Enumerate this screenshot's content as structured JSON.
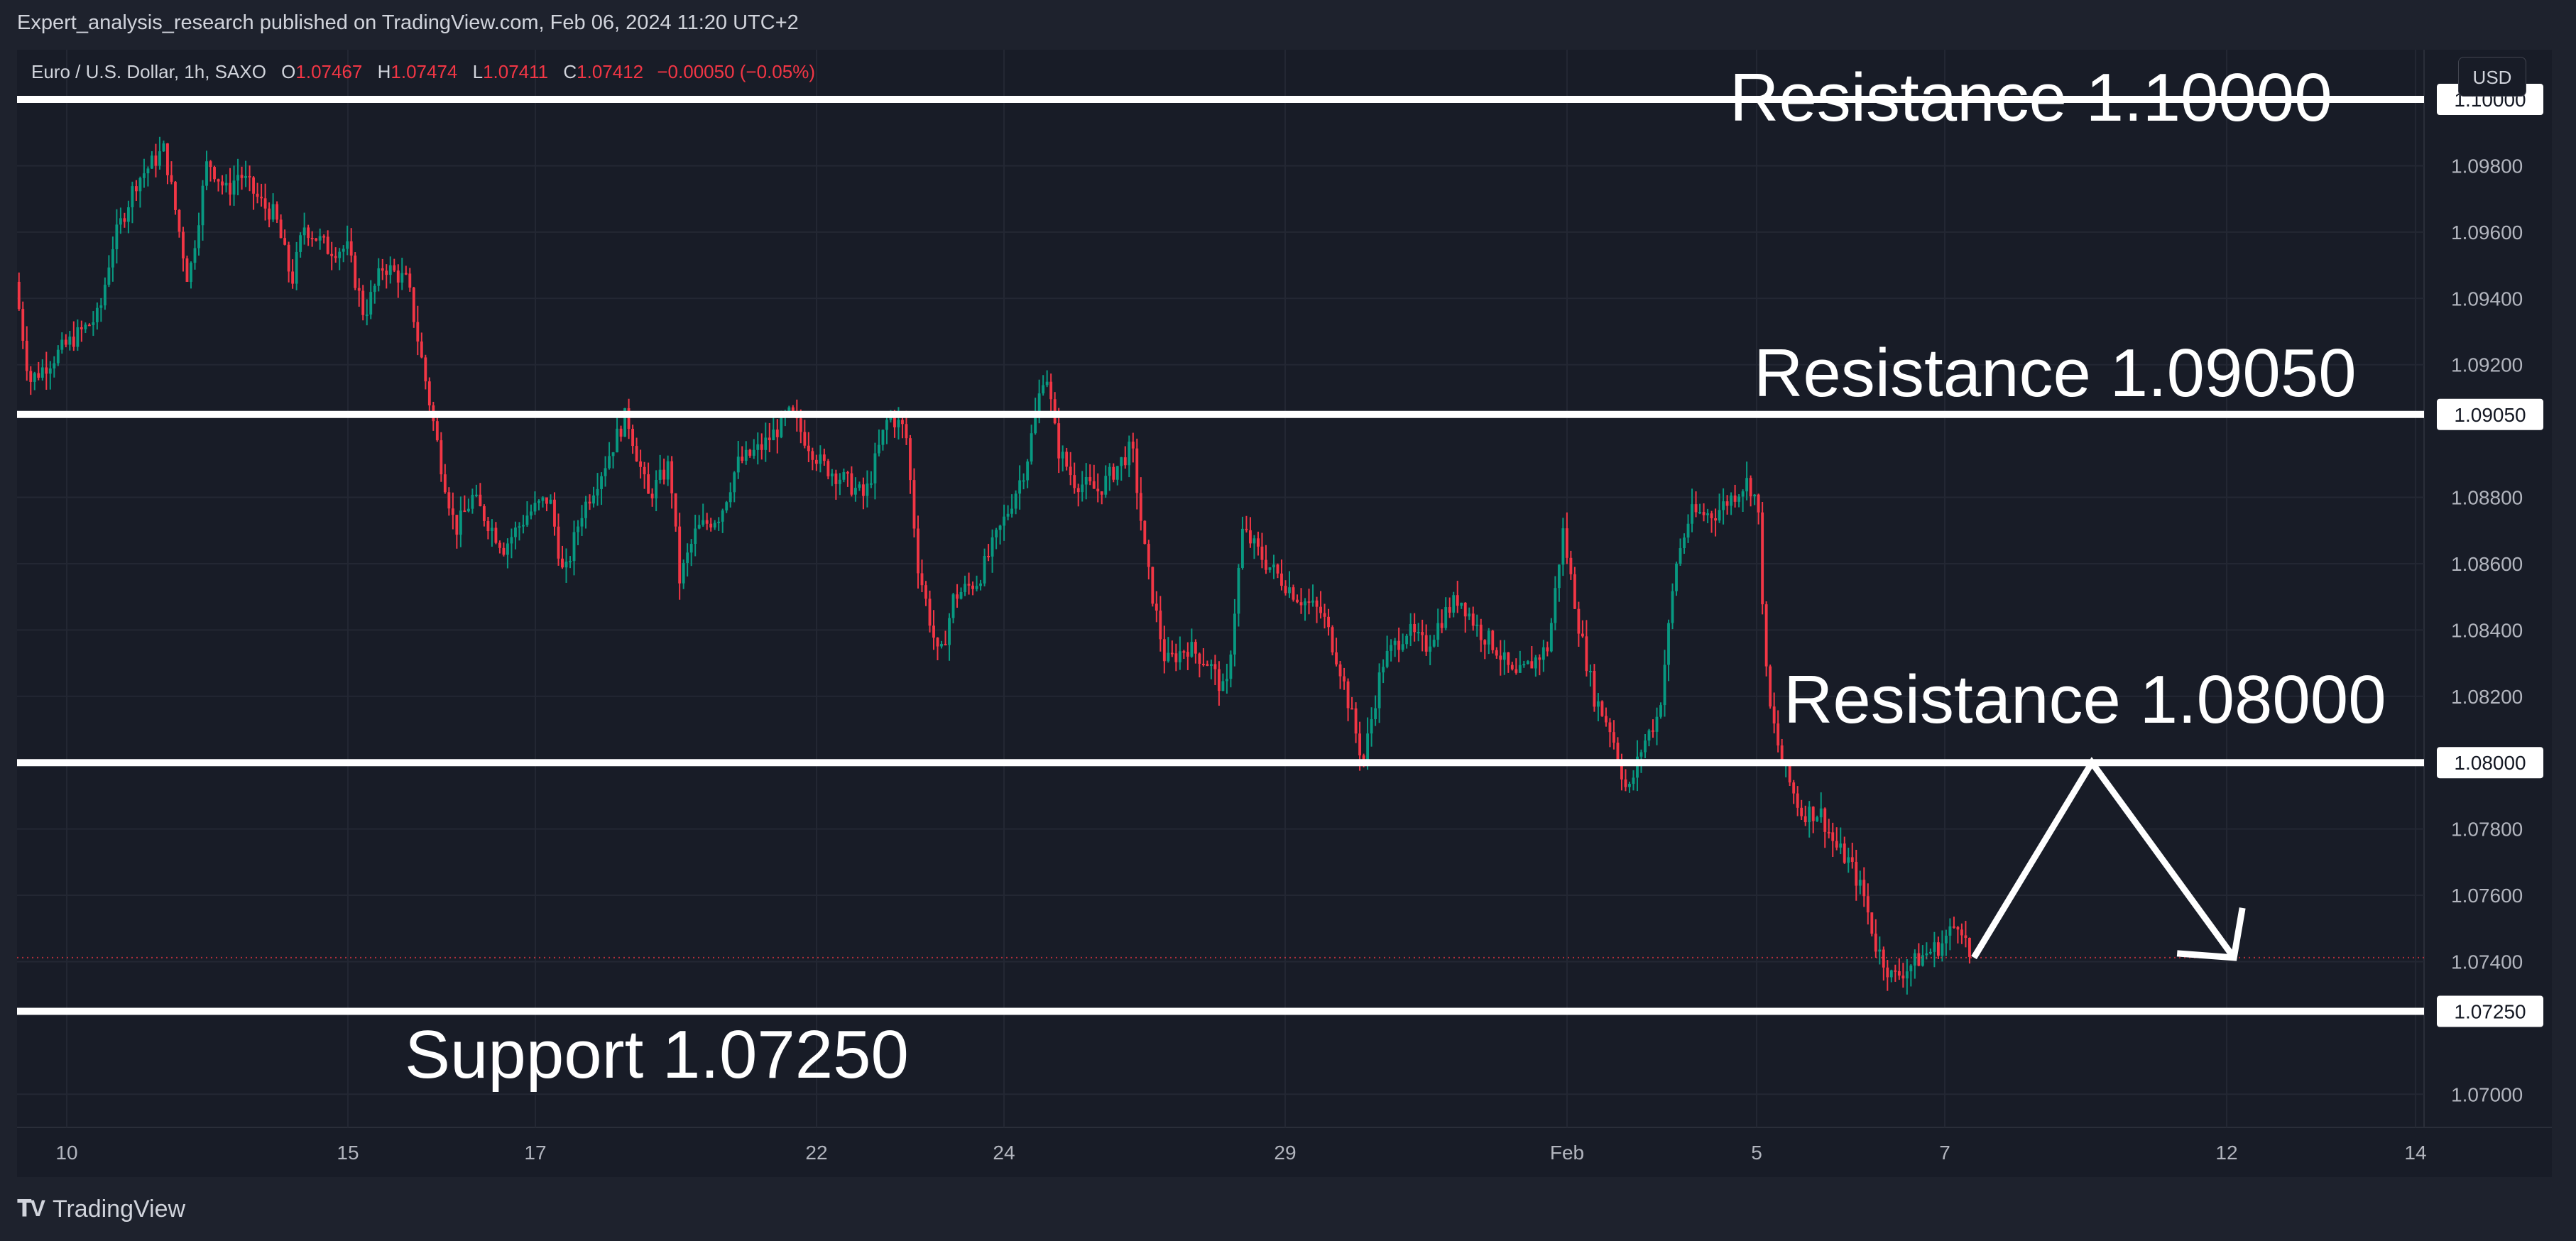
{
  "header": {
    "publish_text": "Expert_analysis_research published on TradingView.com, Feb 06, 2024 11:20 UTC+2"
  },
  "legend": {
    "symbol": "Euro / U.S. Dollar, 1h, SAXO",
    "o_label": "O",
    "o_value": "1.07467",
    "h_label": "H",
    "h_value": "1.07474",
    "l_label": "L",
    "l_value": "1.07411",
    "c_label": "C",
    "c_value": "1.07412",
    "change": "−0.00050 (−0.05%)"
  },
  "currency_button": "USD",
  "annotations": {
    "r1": "Resistance 1.10000",
    "r2": "Resistance 1.09050",
    "r3": "Resistance 1.08000",
    "s1": "Support 1.07250"
  },
  "footer": {
    "brand": "TradingView"
  },
  "colors": {
    "up": "#089981",
    "down": "#f23645",
    "background": "#181c27",
    "level_line": "#ffffff"
  },
  "chart_data": {
    "type": "candlestick",
    "symbol": "EURUSD",
    "timeframe": "1h",
    "ylim": [
      1.069,
      1.1015
    ],
    "x_ticks": [
      "10",
      "15",
      "17",
      "22",
      "24",
      "29",
      "Feb",
      "5",
      "7",
      "12",
      "14"
    ],
    "y_ticks": [
      "1.09800",
      "1.09600",
      "1.09400",
      "1.09200",
      "1.08800",
      "1.08600",
      "1.08400",
      "1.08200",
      "1.07800",
      "1.07600",
      "1.07400",
      "1.07000"
    ],
    "levels": [
      {
        "value": 1.1,
        "label": "1.10000"
      },
      {
        "value": 1.0905,
        "label": "1.09050"
      },
      {
        "value": 1.08,
        "label": "1.08000"
      },
      {
        "value": 1.0725,
        "label": "1.07250"
      }
    ],
    "current_price": 1.07412,
    "price_path": [
      [
        0,
        1.0945
      ],
      [
        0.6,
        1.0915
      ],
      [
        2,
        1.0925
      ],
      [
        3.5,
        1.0935
      ],
      [
        4,
        1.0955
      ],
      [
        5,
        1.0975
      ],
      [
        6.2,
        1.0985
      ],
      [
        7.2,
        1.0945
      ],
      [
        8,
        1.0982
      ],
      [
        8.8,
        1.0972
      ],
      [
        9.3,
        1.0978
      ],
      [
        10.3,
        1.0968
      ],
      [
        10.8,
        1.0965
      ],
      [
        11.5,
        1.0945
      ],
      [
        12,
        1.0962
      ],
      [
        13,
        1.0955
      ],
      [
        13.8,
        1.0955
      ],
      [
        14.5,
        1.0935
      ],
      [
        15.3,
        1.095
      ],
      [
        16.3,
        1.0945
      ],
      [
        16.8,
        1.0925
      ],
      [
        17.7,
        1.089
      ],
      [
        18.3,
        1.087
      ],
      [
        19,
        1.088
      ],
      [
        20.3,
        1.0865
      ],
      [
        21.3,
        1.0875
      ],
      [
        22.2,
        1.088
      ],
      [
        22.8,
        1.0855
      ],
      [
        23.5,
        1.0875
      ],
      [
        24.5,
        1.089
      ],
      [
        25.4,
        1.0905
      ],
      [
        26.3,
        1.088
      ],
      [
        27.2,
        1.089
      ],
      [
        27.6,
        1.0855
      ],
      [
        28.3,
        1.087
      ],
      [
        29.3,
        1.0875
      ],
      [
        30,
        1.089
      ],
      [
        31,
        1.0895
      ],
      [
        32.2,
        1.0905
      ],
      [
        33.5,
        1.089
      ],
      [
        34.5,
        1.0885
      ],
      [
        35.3,
        1.088
      ],
      [
        36.3,
        1.0905
      ],
      [
        37,
        1.09
      ],
      [
        37.5,
        1.086
      ],
      [
        38.4,
        1.083
      ],
      [
        39,
        1.085
      ],
      [
        40,
        1.0855
      ],
      [
        41.2,
        1.0875
      ],
      [
        42,
        1.089
      ],
      [
        42.8,
        1.092
      ],
      [
        43.3,
        1.0895
      ],
      [
        44,
        1.0885
      ],
      [
        45,
        1.0882
      ],
      [
        46.4,
        1.0895
      ],
      [
        47,
        1.086
      ],
      [
        47.8,
        1.083
      ],
      [
        48.7,
        1.0835
      ],
      [
        49.6,
        1.083
      ],
      [
        50.3,
        1.082
      ],
      [
        51,
        1.087
      ],
      [
        52,
        1.086
      ],
      [
        53.3,
        1.085
      ],
      [
        54.3,
        1.0845
      ],
      [
        55,
        1.083
      ],
      [
        56,
        1.08
      ],
      [
        56.8,
        1.083
      ],
      [
        57.8,
        1.084
      ],
      [
        58.6,
        1.0835
      ],
      [
        59.4,
        1.0845
      ],
      [
        60,
        1.085
      ],
      [
        60.8,
        1.084
      ],
      [
        61.5,
        1.0835
      ],
      [
        62.3,
        1.0825
      ],
      [
        63,
        1.083
      ],
      [
        63.7,
        1.0835
      ],
      [
        64.3,
        1.087
      ],
      [
        65,
        1.084
      ],
      [
        65.6,
        1.082
      ],
      [
        66.3,
        1.081
      ],
      [
        67,
        1.079
      ],
      [
        67.6,
        1.0805
      ],
      [
        68.3,
        1.0815
      ],
      [
        69,
        1.086
      ],
      [
        69.6,
        1.0875
      ],
      [
        70.6,
        1.0875
      ],
      [
        71.3,
        1.088
      ],
      [
        72,
        1.0885
      ],
      [
        72.4,
        1.0878
      ],
      [
        72.8,
        1.082
      ],
      [
        73.4,
        1.08
      ],
      [
        74.2,
        1.0785
      ],
      [
        75,
        1.0785
      ],
      [
        75.6,
        1.0775
      ],
      [
        76.2,
        1.077
      ],
      [
        76.8,
        1.076
      ],
      [
        77.3,
        1.0745
      ],
      [
        78,
        1.0735
      ],
      [
        78.6,
        1.0738
      ],
      [
        79.3,
        1.0742
      ],
      [
        80,
        1.0745
      ],
      [
        80.8,
        1.0753
      ],
      [
        81.2,
        1.0741
      ]
    ],
    "projection": [
      [
        81.3,
        1.07412
      ],
      [
        86.2,
        1.08
      ],
      [
        92.1,
        1.07412
      ]
    ]
  }
}
